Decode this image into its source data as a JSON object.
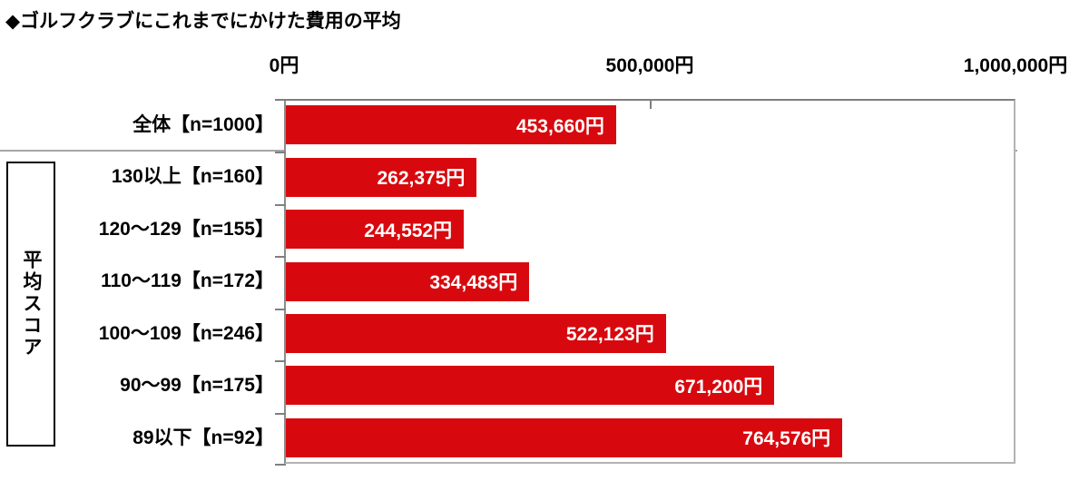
{
  "title": "◆ゴルフクラブにこれまでにかけた費用の平均",
  "group_axis_label": "平均スコア",
  "chart_data": {
    "type": "bar",
    "orientation": "horizontal",
    "title": "ゴルフクラブにこれまでにかけた費用の平均",
    "unit": "円",
    "xlim": [
      0,
      1000000
    ],
    "x_ticks": [
      {
        "value": 0,
        "label": "0円"
      },
      {
        "value": 500000,
        "label": "500,000円"
      },
      {
        "value": 1000000,
        "label": "1,000,000円"
      }
    ],
    "bar_color": "#d8090e",
    "grid": false,
    "legend_position": "none",
    "group_label": "平均スコア",
    "categories": [
      "全体【n=1000】",
      "130以上【n=160】",
      "120～129【n=155】",
      "110～119【n=172】",
      "100～109【n=246】",
      "90～99【n=175】",
      "89以下【n=92】"
    ],
    "values": [
      453660,
      262375,
      244552,
      334483,
      522123,
      671200,
      764576
    ],
    "value_labels": [
      "453,660円",
      "262,375円",
      "244,552円",
      "334,483円",
      "522,123円",
      "671,200円",
      "764,576円"
    ]
  }
}
